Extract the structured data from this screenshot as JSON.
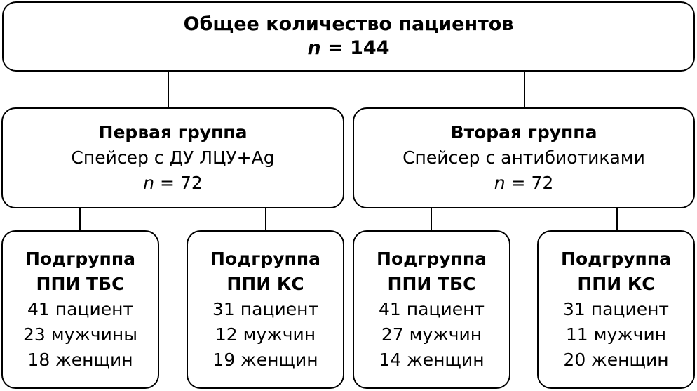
{
  "total": {
    "title": "Общее количество пациентов",
    "n_label": "n",
    "n_value": "= 144"
  },
  "groups": [
    {
      "title": "Первая группа",
      "description": "Спейсер с ДУ ЛЦУ+Ag",
      "n_label": "n",
      "n_value": "= 72",
      "subgroups": [
        {
          "title_line1": "Подгруппа",
          "title_line2": "ППИ ТБС",
          "patients": "41 пациент",
          "men": "23 мужчины",
          "women": "18 женщин"
        },
        {
          "title_line1": "Подгруппа",
          "title_line2": "ППИ КС",
          "patients": "31 пациент",
          "men": "12 мужчин",
          "women": "19 женщин"
        }
      ]
    },
    {
      "title": "Вторая группа",
      "description": "Спейсер с антибиотиками",
      "n_label": "n",
      "n_value": "= 72",
      "subgroups": [
        {
          "title_line1": "Подгруппа",
          "title_line2": "ППИ ТБС",
          "patients": "41 пациент",
          "men": "27 мужчин",
          "women": "14 женщин"
        },
        {
          "title_line1": "Подгруппа",
          "title_line2": "ППИ КС",
          "patients": "31 пациент",
          "men": "11 мужчин",
          "women": "20 женщин"
        }
      ]
    }
  ]
}
